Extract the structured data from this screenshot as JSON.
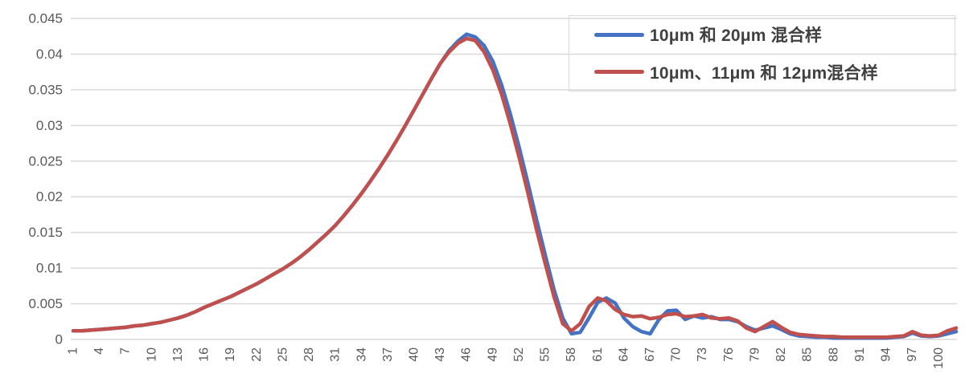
{
  "chart_data": {
    "type": "line",
    "title": "",
    "xlabel": "",
    "ylabel": "",
    "ylim": [
      0,
      0.045
    ],
    "grid": "horizontal",
    "legend_position": "top-right",
    "legend_border": true,
    "x_start": 1,
    "x_count": 102,
    "x_tick_step": 3,
    "x_tick_labels": [
      "1",
      "4",
      "7",
      "10",
      "13",
      "16",
      "19",
      "22",
      "25",
      "28",
      "31",
      "34",
      "37",
      "40",
      "43",
      "46",
      "49",
      "52",
      "55",
      "58",
      "61",
      "64",
      "67",
      "70",
      "73",
      "76",
      "79",
      "82",
      "85",
      "88",
      "91",
      "94",
      "97",
      "100"
    ],
    "y_ticks": [
      0,
      0.005,
      0.01,
      0.015,
      0.02,
      0.025,
      0.03,
      0.035,
      0.04,
      0.045
    ],
    "y_tick_labels": [
      "0",
      "0.005",
      "0.01",
      "0.015",
      "0.02",
      "0.025",
      "0.03",
      "0.035",
      "0.04",
      "0.045"
    ],
    "colors": {
      "gridline": "#d9d9d9",
      "axis_label": "#595959",
      "legend_text": "#404040",
      "series1": "#4472c4",
      "series2": "#c0504d"
    },
    "series": [
      {
        "name": "10μm 和 20μm 混合样",
        "color": "#4472c4",
        "values": [
          0.0012,
          0.0012,
          0.0013,
          0.0014,
          0.0015,
          0.0016,
          0.0017,
          0.0019,
          0.002,
          0.0022,
          0.0024,
          0.0027,
          0.003,
          0.0034,
          0.0039,
          0.0045,
          0.005,
          0.0055,
          0.006,
          0.0066,
          0.0072,
          0.0078,
          0.0085,
          0.0092,
          0.0099,
          0.0107,
          0.0116,
          0.0126,
          0.0137,
          0.0148,
          0.016,
          0.0174,
          0.0189,
          0.0205,
          0.0222,
          0.024,
          0.0259,
          0.0279,
          0.03,
          0.0322,
          0.0344,
          0.0366,
          0.0387,
          0.0405,
          0.0418,
          0.0428,
          0.0424,
          0.0412,
          0.039,
          0.0357,
          0.0316,
          0.027,
          0.022,
          0.0168,
          0.0118,
          0.007,
          0.003,
          0.0008,
          0.001,
          0.003,
          0.0052,
          0.0058,
          0.0051,
          0.003,
          0.0018,
          0.0011,
          0.0008,
          0.0028,
          0.004,
          0.0041,
          0.0028,
          0.0033,
          0.003,
          0.0032,
          0.0028,
          0.0028,
          0.0025,
          0.0018,
          0.0013,
          0.0016,
          0.0019,
          0.0014,
          0.0008,
          0.0005,
          0.0004,
          0.0003,
          0.0003,
          0.0002,
          0.0002,
          0.0002,
          0.0002,
          0.0002,
          0.0002,
          0.0002,
          0.0003,
          0.0004,
          0.0009,
          0.0005,
          0.0004,
          0.0005,
          0.0008,
          0.0011
        ]
      },
      {
        "name": "10μm、11μm 和 12μm混合样",
        "color": "#c0504d",
        "values": [
          0.0012,
          0.0012,
          0.0013,
          0.0014,
          0.0015,
          0.0016,
          0.0017,
          0.0019,
          0.002,
          0.0022,
          0.0024,
          0.0027,
          0.003,
          0.0034,
          0.0039,
          0.0045,
          0.005,
          0.0055,
          0.006,
          0.0066,
          0.0072,
          0.0078,
          0.0085,
          0.0092,
          0.0099,
          0.0107,
          0.0116,
          0.0126,
          0.0137,
          0.0148,
          0.016,
          0.0174,
          0.0189,
          0.0205,
          0.0222,
          0.024,
          0.0259,
          0.0279,
          0.03,
          0.0322,
          0.0344,
          0.0366,
          0.0387,
          0.0403,
          0.0415,
          0.0422,
          0.0419,
          0.0403,
          0.0378,
          0.0344,
          0.0302,
          0.0256,
          0.0206,
          0.0154,
          0.0106,
          0.006,
          0.0022,
          0.0012,
          0.0022,
          0.0046,
          0.0058,
          0.0054,
          0.0042,
          0.0035,
          0.0032,
          0.0033,
          0.0029,
          0.0031,
          0.0035,
          0.0036,
          0.0032,
          0.0033,
          0.0035,
          0.003,
          0.0029,
          0.003,
          0.0026,
          0.0016,
          0.0011,
          0.0018,
          0.0025,
          0.0017,
          0.001,
          0.0007,
          0.0006,
          0.0005,
          0.0004,
          0.0004,
          0.0003,
          0.0003,
          0.0003,
          0.0003,
          0.0003,
          0.0003,
          0.0004,
          0.0005,
          0.0011,
          0.0006,
          0.0005,
          0.0006,
          0.0012,
          0.0016
        ]
      }
    ]
  }
}
